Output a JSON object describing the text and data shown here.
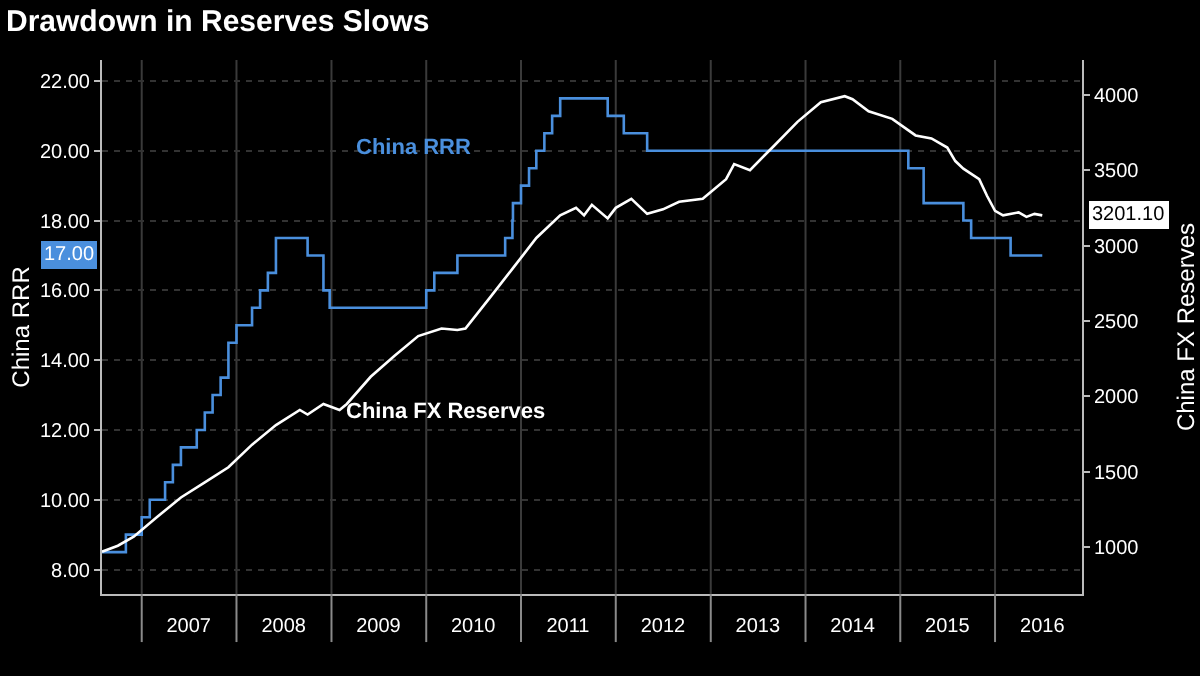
{
  "chart_data": {
    "type": "line",
    "title": "Drawdown in Reserves Slows",
    "ylabel": "China RRR",
    "y2label": "China FX Reserves",
    "grid": true,
    "annotations": [
      "17.00",
      "3201.10"
    ],
    "xlim": [
      "2006-08",
      "2016-12"
    ],
    "xticks": [
      {
        "value": "2007-01",
        "label": null
      },
      {
        "value": "2007-07",
        "label": "2007"
      },
      {
        "value": "2008-01",
        "label": null
      },
      {
        "value": "2008-07",
        "label": "2008"
      },
      {
        "value": "2009-01",
        "label": null
      },
      {
        "value": "2009-07",
        "label": "2009"
      },
      {
        "value": "2010-01",
        "label": null
      },
      {
        "value": "2010-07",
        "label": "2010"
      },
      {
        "value": "2011-01",
        "label": null
      },
      {
        "value": "2011-07",
        "label": "2011"
      },
      {
        "value": "2012-01",
        "label": null
      },
      {
        "value": "2012-07",
        "label": "2012"
      },
      {
        "value": "2013-01",
        "label": null
      },
      {
        "value": "2013-07",
        "label": "2013"
      },
      {
        "value": "2014-01",
        "label": null
      },
      {
        "value": "2014-07",
        "label": "2014"
      },
      {
        "value": "2015-01",
        "label": null
      },
      {
        "value": "2015-07",
        "label": "2015"
      },
      {
        "value": "2016-01",
        "label": null
      },
      {
        "value": "2016-07",
        "label": "2016"
      }
    ],
    "ylim": [
      7.3,
      22.6
    ],
    "yticks": [
      {
        "value": 8,
        "label": "8.00"
      },
      {
        "value": 10,
        "label": "10.00"
      },
      {
        "value": 12,
        "label": "12.00"
      },
      {
        "value": 14,
        "label": "14.00"
      },
      {
        "value": 16,
        "label": "16.00"
      },
      {
        "value": 18,
        "label": "18.00"
      },
      {
        "value": 20,
        "label": "20.00"
      },
      {
        "value": 22,
        "label": "22.00"
      }
    ],
    "y2lim": [
      690,
      4230
    ],
    "y2ticks": [
      1000,
      1500,
      2000,
      2500,
      3000,
      3500,
      4000
    ],
    "series": [
      {
        "name": "China RRR",
        "type": "step",
        "axis": "y",
        "color": "#4a8fdd",
        "x": [
          "2006-08",
          "2006-11",
          "2007-01",
          "2007-02",
          "2007-04",
          "2007-05",
          "2007-06",
          "2007-08",
          "2007-09",
          "2007-10",
          "2007-11",
          "2007-12",
          "2008-01",
          "2008-03",
          "2008-04",
          "2008-05",
          "2008-06",
          "2008-10",
          "2008-12",
          "2008-12-25",
          "2010-01",
          "2010-02",
          "2010-05",
          "2010-11",
          "2010-11-29",
          "2010-12",
          "2011-01",
          "2011-02",
          "2011-03",
          "2011-04",
          "2011-05",
          "2011-06",
          "2011-12",
          "2012-02",
          "2012-05",
          "2015-02",
          "2015-04",
          "2015-09",
          "2015-10",
          "2016-03",
          "2016-07"
        ],
        "values": [
          8.5,
          9,
          9.5,
          10,
          10.5,
          11,
          11.5,
          12,
          12.5,
          13,
          13.5,
          14.5,
          15,
          15.5,
          16,
          16.5,
          17.5,
          17,
          16,
          15.5,
          16,
          16.5,
          17,
          17.5,
          18,
          18.5,
          19,
          19.5,
          20,
          20.5,
          21,
          21.5,
          21,
          20.5,
          20,
          19.5,
          18.5,
          18,
          17.5,
          17,
          17
        ]
      },
      {
        "name": "China FX Reserves",
        "axis": "y2",
        "color": "#ffffff",
        "x": [
          "2006-08",
          "2006-10",
          "2006-12",
          "2007-03",
          "2007-06",
          "2007-09",
          "2007-12",
          "2008-03",
          "2008-06",
          "2008-09",
          "2008-10",
          "2008-12",
          "2009-02",
          "2009-03",
          "2009-06",
          "2009-09",
          "2009-12",
          "2010-03",
          "2010-05",
          "2010-06",
          "2010-09",
          "2010-12",
          "2011-03",
          "2011-06",
          "2011-08",
          "2011-09",
          "2011-10",
          "2011-12",
          "2012-01",
          "2012-03",
          "2012-05",
          "2012-07",
          "2012-09",
          "2012-12",
          "2013-03",
          "2013-04",
          "2013-06",
          "2013-09",
          "2013-12",
          "2014-03",
          "2014-06",
          "2014-07",
          "2014-09",
          "2014-12",
          "2015-03",
          "2015-05",
          "2015-07",
          "2015-08",
          "2015-09",
          "2015-11",
          "2015-12",
          "2016-01",
          "2016-02",
          "2016-04",
          "2016-05",
          "2016-06",
          "2016-07"
        ],
        "values": [
          970,
          1010,
          1070,
          1200,
          1330,
          1430,
          1530,
          1680,
          1810,
          1910,
          1880,
          1950,
          1910,
          1950,
          2130,
          2270,
          2400,
          2450,
          2440,
          2450,
          2650,
          2850,
          3050,
          3200,
          3250,
          3200,
          3270,
          3180,
          3250,
          3310,
          3210,
          3240,
          3290,
          3310,
          3440,
          3540,
          3500,
          3660,
          3820,
          3950,
          3990,
          3970,
          3890,
          3840,
          3730,
          3710,
          3650,
          3560,
          3510,
          3440,
          3330,
          3230,
          3200,
          3220,
          3190,
          3210,
          3200
        ]
      }
    ]
  }
}
